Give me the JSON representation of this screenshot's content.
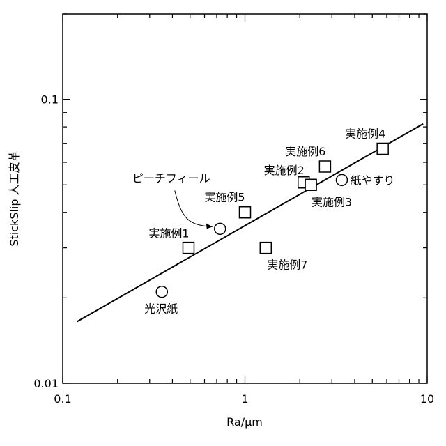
{
  "chart_data": {
    "type": "scatter",
    "xlabel": "Ra/μm",
    "ylabel": "StickSlip 人工皮革",
    "xscale": "log",
    "yscale": "log",
    "xlim": [
      0.1,
      10
    ],
    "ylim": [
      0.01,
      0.2
    ],
    "x_ticks": [
      {
        "value": 0.1,
        "label": "0.1"
      },
      {
        "value": 1,
        "label": "1"
      },
      {
        "value": 10,
        "label": "10"
      }
    ],
    "y_ticks": [
      {
        "value": 0.01,
        "label": "0.01"
      },
      {
        "value": 0.1,
        "label": "0.1"
      }
    ],
    "grid": false,
    "legend": "none",
    "series": [
      {
        "marker": "square",
        "points": [
          {
            "x": 0.49,
            "y": 0.03,
            "label": "実施例1"
          },
          {
            "x": 2.1,
            "y": 0.051,
            "label": "実施例2"
          },
          {
            "x": 2.3,
            "y": 0.05,
            "label": "実施例3"
          },
          {
            "x": 5.7,
            "y": 0.067,
            "label": "実施例4"
          },
          {
            "x": 1.0,
            "y": 0.04,
            "label": "実施例5"
          },
          {
            "x": 2.75,
            "y": 0.058,
            "label": "実施例6"
          },
          {
            "x": 1.3,
            "y": 0.03,
            "label": "実施例7"
          }
        ]
      },
      {
        "marker": "circle",
        "points": [
          {
            "x": 0.35,
            "y": 0.021,
            "label": "光沢紙"
          },
          {
            "x": 0.73,
            "y": 0.035,
            "label": "ピーチフィール"
          },
          {
            "x": 3.4,
            "y": 0.052,
            "label": "紙やすり"
          }
        ]
      }
    ],
    "trendline": {
      "x": [
        0.12,
        9.5
      ],
      "y": [
        0.0165,
        0.082
      ]
    }
  }
}
